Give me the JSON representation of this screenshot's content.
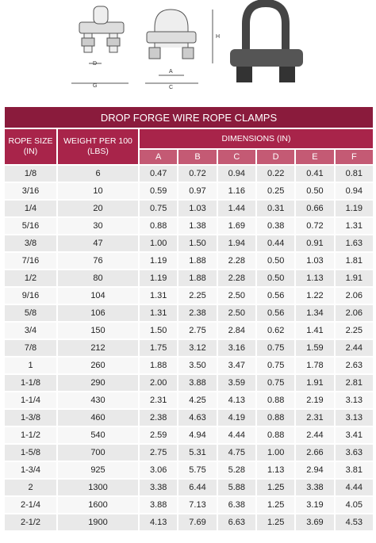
{
  "diagram": {
    "labels": [
      "D",
      "G",
      "A",
      "C",
      "H"
    ]
  },
  "table": {
    "title": "DROP FORGE WIRE ROPE CLAMPS",
    "headers": [
      "ROPE SIZE (IN)",
      "WEIGHT PER 100 (LBS)",
      "DIMENSIONS (IN)"
    ],
    "dimension_columns": [
      "A",
      "B",
      "C",
      "D",
      "E",
      "F"
    ],
    "rows": [
      [
        "1/8",
        "6",
        "0.47",
        "0.72",
        "0.94",
        "0.22",
        "0.41",
        "0.81"
      ],
      [
        "3/16",
        "10",
        "0.59",
        "0.97",
        "1.16",
        "0.25",
        "0.50",
        "0.94"
      ],
      [
        "1/4",
        "20",
        "0.75",
        "1.03",
        "1.44",
        "0.31",
        "0.66",
        "1.19"
      ],
      [
        "5/16",
        "30",
        "0.88",
        "1.38",
        "1.69",
        "0.38",
        "0.72",
        "1.31"
      ],
      [
        "3/8",
        "47",
        "1.00",
        "1.50",
        "1.94",
        "0.44",
        "0.91",
        "1.63"
      ],
      [
        "7/16",
        "76",
        "1.19",
        "1.88",
        "2.28",
        "0.50",
        "1.03",
        "1.81"
      ],
      [
        "1/2",
        "80",
        "1.19",
        "1.88",
        "2.28",
        "0.50",
        "1.13",
        "1.91"
      ],
      [
        "9/16",
        "104",
        "1.31",
        "2.25",
        "2.50",
        "0.56",
        "1.22",
        "2.06"
      ],
      [
        "5/8",
        "106",
        "1.31",
        "2.38",
        "2.50",
        "0.56",
        "1.34",
        "2.06"
      ],
      [
        "3/4",
        "150",
        "1.50",
        "2.75",
        "2.84",
        "0.62",
        "1.41",
        "2.25"
      ],
      [
        "7/8",
        "212",
        "1.75",
        "3.12",
        "3.16",
        "0.75",
        "1.59",
        "2.44"
      ],
      [
        "1",
        "260",
        "1.88",
        "3.50",
        "3.47",
        "0.75",
        "1.78",
        "2.63"
      ],
      [
        "1-1/8",
        "290",
        "2.00",
        "3.88",
        "3.59",
        "0.75",
        "1.91",
        "2.81"
      ],
      [
        "1-1/4",
        "430",
        "2.31",
        "4.25",
        "4.13",
        "0.88",
        "2.19",
        "3.13"
      ],
      [
        "1-3/8",
        "460",
        "2.38",
        "4.63",
        "4.19",
        "0.88",
        "2.31",
        "3.13"
      ],
      [
        "1-1/2",
        "540",
        "2.59",
        "4.94",
        "4.44",
        "0.88",
        "2.44",
        "3.41"
      ],
      [
        "1-5/8",
        "700",
        "2.75",
        "5.31",
        "4.75",
        "1.00",
        "2.66",
        "3.63"
      ],
      [
        "1-3/4",
        "925",
        "3.06",
        "5.75",
        "5.28",
        "1.13",
        "2.94",
        "3.81"
      ],
      [
        "2",
        "1300",
        "3.38",
        "6.44",
        "5.88",
        "1.25",
        "3.38",
        "4.44"
      ],
      [
        "2-1/4",
        "1600",
        "3.88",
        "7.13",
        "6.38",
        "1.25",
        "3.19",
        "4.05"
      ],
      [
        "2-1/2",
        "1900",
        "4.13",
        "7.69",
        "6.63",
        "1.25",
        "3.69",
        "4.53"
      ]
    ]
  }
}
